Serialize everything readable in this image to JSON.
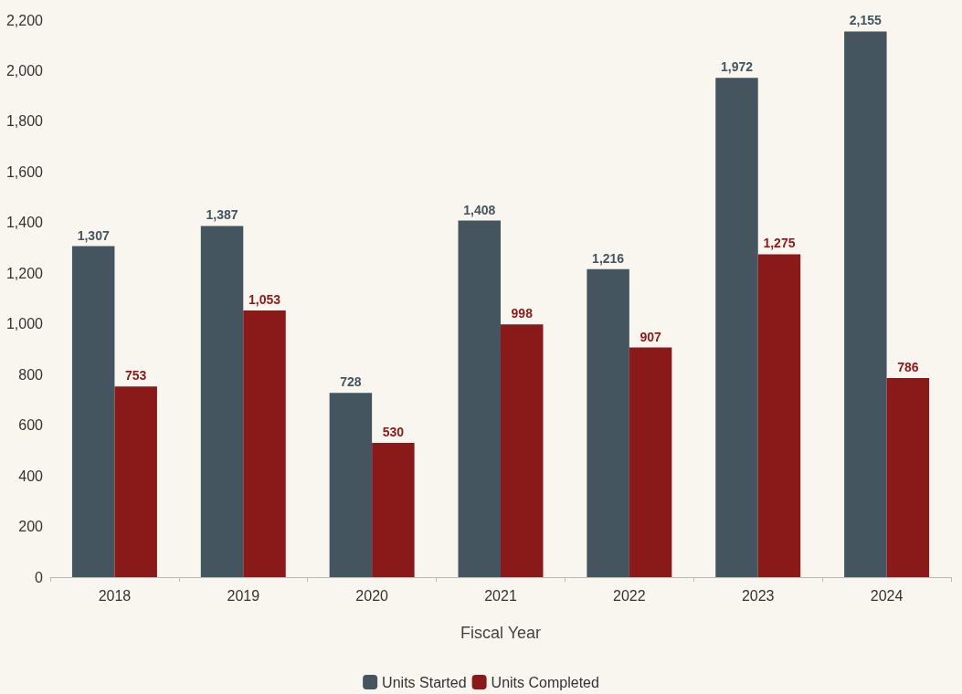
{
  "chart_data": {
    "type": "bar",
    "xlabel": "Fiscal Year",
    "categories": [
      "2018",
      "2019",
      "2020",
      "2021",
      "2022",
      "2023",
      "2024"
    ],
    "series": [
      {
        "name": "Units Started",
        "color": "#44555f",
        "values": [
          1307,
          1387,
          728,
          1408,
          1216,
          1972,
          2155
        ],
        "value_labels": [
          "1,307",
          "1,387",
          "728",
          "1,408",
          "1,216",
          "1,972",
          "2,155"
        ]
      },
      {
        "name": "Units Completed",
        "color": "#8a1919",
        "values": [
          753,
          1053,
          530,
          998,
          907,
          1275,
          786
        ],
        "value_labels": [
          "753",
          "1,053",
          "530",
          "998",
          "907",
          "1,275",
          "786"
        ]
      }
    ],
    "ylim": [
      0,
      2200
    ],
    "yticks": [
      0,
      200,
      400,
      600,
      800,
      {
        "value": 1000,
        "label": "1,000"
      },
      {
        "value": 1200,
        "label": "1,200"
      },
      {
        "value": 1400,
        "label": "1,400"
      },
      {
        "value": 1600,
        "label": "1,600"
      },
      {
        "value": 1800,
        "label": "1,800"
      },
      {
        "value": 2000,
        "label": "2,000"
      },
      {
        "value": 2200,
        "label": "2,200"
      }
    ],
    "grid": false,
    "legend": "bottom"
  }
}
